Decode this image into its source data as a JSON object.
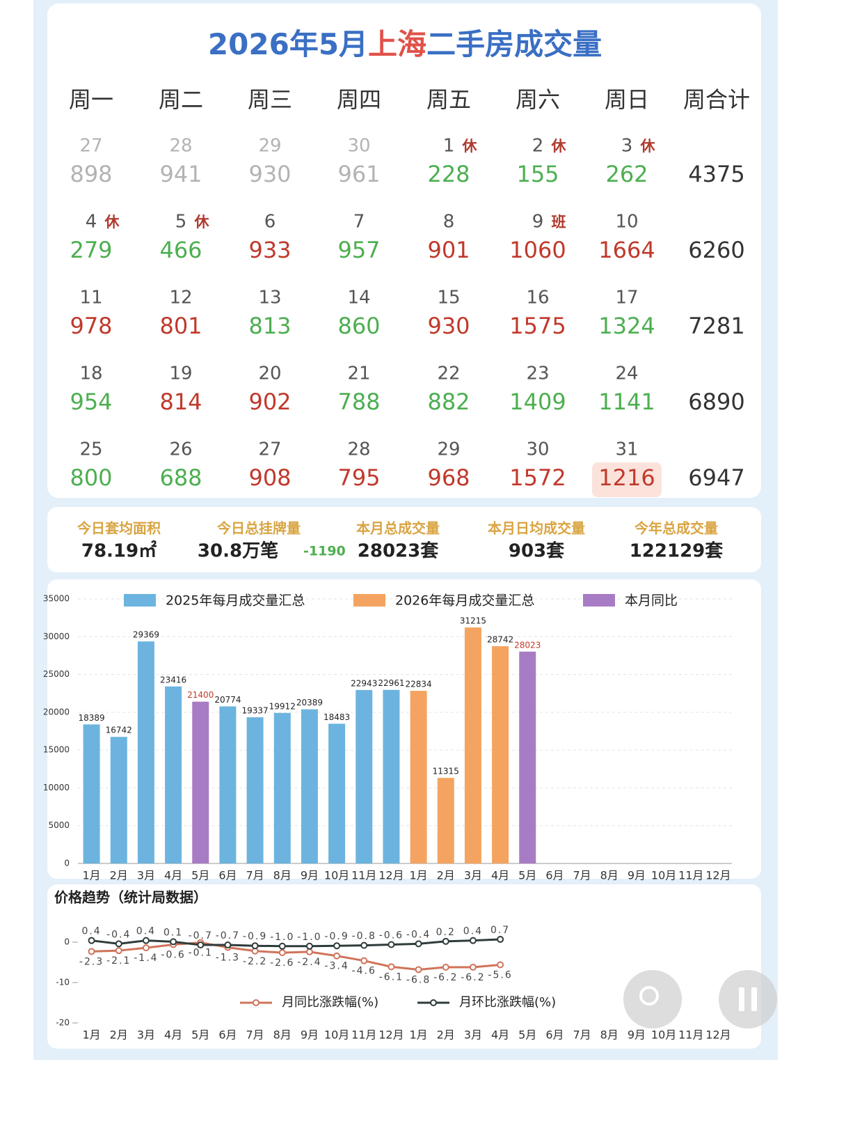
{
  "title": [
    "2026年5月",
    "上海",
    "二手房成交量"
  ],
  "title_colors": [
    "#3a6fc4",
    "#e0524a",
    "#3a6fc4"
  ],
  "weekdays": [
    "周一",
    "周二",
    "周三",
    "周四",
    "周五",
    "周六",
    "周日",
    "周合计"
  ],
  "weeks": [
    {
      "cells": [
        {
          "day": 27,
          "value": 898,
          "color": "#b3b3b3"
        },
        {
          "day": 28,
          "value": 941,
          "color": "#b3b3b3"
        },
        {
          "day": 29,
          "value": 930,
          "color": "#b3b3b3"
        },
        {
          "day": 30,
          "value": 961,
          "color": "#b3b3b3"
        },
        {
          "day": 1,
          "tag": "休",
          "value": 228,
          "color": "#4caf50"
        },
        {
          "day": 2,
          "tag": "休",
          "value": 155,
          "color": "#4caf50"
        },
        {
          "day": 3,
          "tag": "休",
          "value": 262,
          "color": "#4caf50"
        }
      ],
      "total": 4375
    },
    {
      "cells": [
        {
          "day": 4,
          "tag": "休",
          "value": 279,
          "color": "#4caf50"
        },
        {
          "day": 5,
          "tag": "休",
          "value": 466,
          "color": "#4caf50"
        },
        {
          "day": 6,
          "value": 933,
          "color": "#c0392b"
        },
        {
          "day": 7,
          "value": 957,
          "color": "#4caf50"
        },
        {
          "day": 8,
          "value": 901,
          "color": "#c0392b"
        },
        {
          "day": 9,
          "tag": "班",
          "value": 1060,
          "color": "#c0392b"
        },
        {
          "day": 10,
          "value": 1664,
          "color": "#c0392b"
        }
      ],
      "total": 6260
    },
    {
      "cells": [
        {
          "day": 11,
          "value": 978,
          "color": "#c0392b"
        },
        {
          "day": 12,
          "value": 801,
          "color": "#c0392b"
        },
        {
          "day": 13,
          "value": 813,
          "color": "#4caf50"
        },
        {
          "day": 14,
          "value": 860,
          "color": "#4caf50"
        },
        {
          "day": 15,
          "value": 930,
          "color": "#c0392b"
        },
        {
          "day": 16,
          "value": 1575,
          "color": "#c0392b"
        },
        {
          "day": 17,
          "value": 1324,
          "color": "#4caf50"
        }
      ],
      "total": 7281
    },
    {
      "cells": [
        {
          "day": 18,
          "value": 954,
          "color": "#4caf50"
        },
        {
          "day": 19,
          "value": 814,
          "color": "#c0392b"
        },
        {
          "day": 20,
          "value": 902,
          "color": "#c0392b"
        },
        {
          "day": 21,
          "value": 788,
          "color": "#4caf50"
        },
        {
          "day": 22,
          "value": 882,
          "color": "#4caf50"
        },
        {
          "day": 23,
          "value": 1409,
          "color": "#4caf50"
        },
        {
          "day": 24,
          "value": 1141,
          "color": "#4caf50"
        }
      ],
      "total": 6890
    },
    {
      "cells": [
        {
          "day": 25,
          "value": 800,
          "color": "#4caf50"
        },
        {
          "day": 26,
          "value": 688,
          "color": "#4caf50"
        },
        {
          "day": 27,
          "value": 908,
          "color": "#c0392b"
        },
        {
          "day": 28,
          "value": 795,
          "color": "#c0392b"
        },
        {
          "day": 29,
          "value": 968,
          "color": "#c0392b"
        },
        {
          "day": 30,
          "value": 1572,
          "color": "#c0392b"
        },
        {
          "day": 31,
          "value": 1216,
          "color": "#c0392b",
          "highlight": true
        }
      ],
      "total": 6947
    }
  ],
  "stats": [
    {
      "label": "今日套均面积",
      "value": "78.19㎡"
    },
    {
      "label": "今日总挂牌量",
      "value": "30.8万笔",
      "change": "-1190"
    },
    {
      "label": "本月总成交量",
      "value": "28023套"
    },
    {
      "label": "本月日均成交量",
      "value": "903套"
    },
    {
      "label": "今年总成交量",
      "value": "122129套"
    }
  ],
  "chart_data": [
    {
      "type": "bar",
      "categories": [
        "1月",
        "2月",
        "3月",
        "4月",
        "5月",
        "6月",
        "7月",
        "8月",
        "9月",
        "10月",
        "11月",
        "12月",
        "1月",
        "2月",
        "3月",
        "4月",
        "5月",
        "6月",
        "7月",
        "8月",
        "9月",
        "10月",
        "11月",
        "12月"
      ],
      "series": [
        {
          "name": "2025年每月成交量汇总",
          "color": "#6cb4df",
          "label_color": "#222222",
          "values": [
            18389,
            16742,
            29369,
            23416,
            null,
            20774,
            19337,
            19912,
            20389,
            18483,
            22943,
            22961,
            null,
            null,
            null,
            null,
            null,
            null,
            null,
            null,
            null,
            null,
            null,
            null
          ]
        },
        {
          "name": "2026年每月成交量汇总",
          "color": "#f4a460",
          "label_color": "#222222",
          "values": [
            null,
            null,
            null,
            null,
            null,
            null,
            null,
            null,
            null,
            null,
            null,
            null,
            22834,
            11315,
            31215,
            28742,
            null,
            null,
            null,
            null,
            null,
            null,
            null,
            null
          ]
        },
        {
          "name": "本月同比",
          "color": "#a87cc4",
          "label_color": "#c0392b",
          "values": [
            null,
            null,
            null,
            null,
            21400,
            null,
            null,
            null,
            null,
            null,
            null,
            null,
            null,
            null,
            null,
            null,
            28023,
            null,
            null,
            null,
            null,
            null,
            null,
            null
          ]
        }
      ],
      "ylim": [
        0,
        35000
      ],
      "yticks": [
        0,
        5000,
        10000,
        15000,
        20000,
        25000,
        30000,
        35000
      ],
      "grid": true
    },
    {
      "type": "line",
      "title": "价格趋势（统计局数据）",
      "categories": [
        "1月",
        "2月",
        "3月",
        "4月",
        "5月",
        "6月",
        "7月",
        "8月",
        "9月",
        "10月",
        "11月",
        "12月",
        "1月",
        "2月",
        "3月",
        "4月",
        "5月",
        "6月",
        "7月",
        "8月",
        "9月",
        "10月",
        "11月",
        "12月"
      ],
      "series": [
        {
          "name": "月同比涨跌幅(%)",
          "color": "#d0735a",
          "label_position": "below",
          "values": [
            -2.3,
            -2.1,
            -1.4,
            -0.6,
            -0.1,
            -1.3,
            -2.2,
            -2.6,
            -2.4,
            -3.4,
            -4.6,
            -6.1,
            -6.8,
            -6.2,
            -6.2,
            -5.6,
            null,
            null,
            null,
            null,
            null,
            null,
            null,
            null
          ],
          "value_labels": [
            "-2.3",
            "-2.1",
            "-1.4",
            "-0.6",
            "-0.1",
            "-1.3",
            "-2.2",
            "-2.6",
            "-2.4",
            "-3.4",
            "-4.6",
            "-6.1",
            "-6.8",
            "-6.2",
            "-6.2",
            "-5.6",
            null,
            null,
            null,
            null,
            null,
            null,
            null,
            null
          ]
        },
        {
          "name": "月环比涨跌幅(%)",
          "color": "#2f3b3b",
          "label_position": "above",
          "values": [
            0.4,
            -0.4,
            0.4,
            0.1,
            -0.7,
            -0.7,
            -0.9,
            -1.0,
            -1.0,
            -0.9,
            -0.8,
            -0.6,
            -0.4,
            0.2,
            0.4,
            0.7,
            null,
            null,
            null,
            null,
            null,
            null,
            null,
            null
          ],
          "value_labels": [
            "0.4",
            "-0.4",
            "0.4",
            "0.1",
            "-0.7",
            "-0.7",
            "-0.9",
            "-1.0",
            "-1.0",
            "-0.9",
            "-0.8",
            "-0.6",
            "-0.4",
            "0.2",
            "0.4",
            "0.7",
            null,
            null,
            null,
            null,
            null,
            null,
            null,
            null
          ]
        }
      ],
      "ylim": [
        -20,
        5
      ],
      "yticks": [
        -20,
        -10,
        0
      ],
      "grid": false
    }
  ]
}
